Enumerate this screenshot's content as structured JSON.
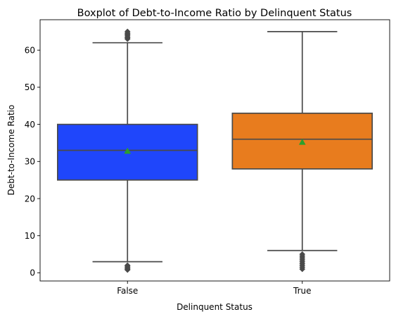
{
  "chart_data": {
    "type": "box",
    "title": "Boxplot of Debt-to-Income Ratio by Delinquent Status",
    "xlabel": "Delinquent Status",
    "ylabel": "Debt-to-Income Ratio",
    "ylim": [
      -2.2,
      68.2
    ],
    "yticks": [
      0,
      10,
      20,
      30,
      40,
      50,
      60
    ],
    "grid": false,
    "mean_color": "#2ca02c",
    "line_color": "#4a4a4a",
    "groups": [
      {
        "category": "False",
        "color": "#1f46fb",
        "whisker_low": 3,
        "q1": 25,
        "median": 33,
        "q3": 40,
        "whisker_high": 62,
        "mean": 32.8,
        "outliers": [
          0.8,
          1.0,
          1.2,
          1.5,
          1.8,
          2.0,
          63.0,
          63.3,
          63.6,
          64.0,
          64.3,
          64.6,
          65.0
        ]
      },
      {
        "category": "True",
        "color": "#e87c1e",
        "whisker_low": 6,
        "q1": 28,
        "median": 36,
        "q3": 43,
        "whisker_high": 65,
        "mean": 35.2,
        "outliers": [
          1.0,
          1.5,
          2.0,
          2.5,
          3.0,
          3.5,
          4.0,
          4.5,
          5.0
        ]
      }
    ]
  }
}
